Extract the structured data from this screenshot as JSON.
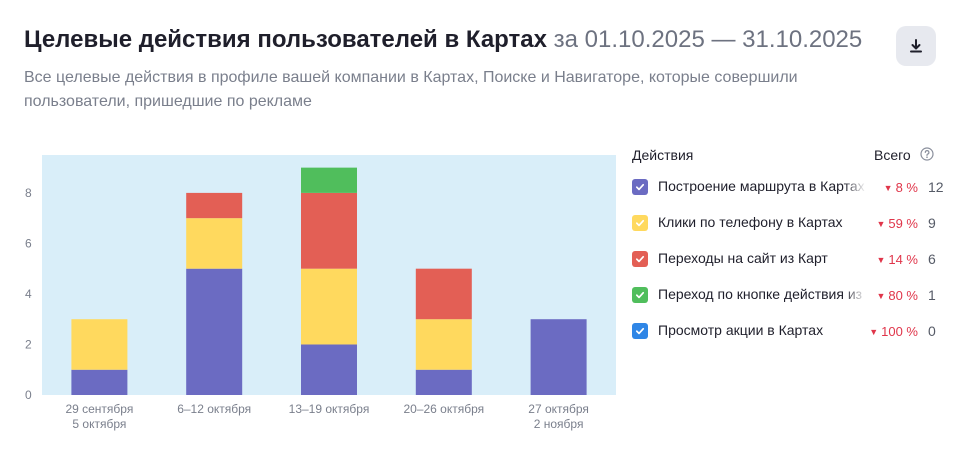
{
  "header": {
    "title": "Целевые действия пользователей в Картах",
    "period": "за 01.10.2025 — 31.10.2025",
    "subtitle": "Все целевые действия в профиле вашей компании в Картах, Поиске и Навигаторе, которые совершили пользователи, пришедшие по рекламе",
    "download_icon": "download-icon"
  },
  "legend": {
    "col_actions": "Действия",
    "col_total": "Всего",
    "help_icon": "question-circle-icon",
    "items": [
      {
        "name": "Построение маршрута в Картах",
        "change": "8 %",
        "total": "12",
        "color": "#6b6bc2"
      },
      {
        "name": "Клики по телефону в Картах",
        "change": "59 %",
        "total": "9",
        "color": "#ffd95e"
      },
      {
        "name": "Переходы на сайт из Карт",
        "change": "14 %",
        "total": "6",
        "color": "#e35f55"
      },
      {
        "name": "Переход по кнопке действия из Карт",
        "change": "80 %",
        "total": "1",
        "color": "#50be5c"
      },
      {
        "name": "Просмотр акции в Картах",
        "change": "100 %",
        "total": "0",
        "color": "#2f86e6"
      }
    ]
  },
  "chart_data": {
    "type": "bar",
    "stacked": true,
    "categories": [
      [
        "29 сентября",
        "5 октября"
      ],
      [
        "6–12 октября"
      ],
      [
        "13–19 октября"
      ],
      [
        "20–26 октября"
      ],
      [
        "27 октября",
        "2 ноября"
      ]
    ],
    "series": [
      {
        "name": "Построение маршрута в Картах",
        "color": "#6b6bc2",
        "values": [
          1,
          5,
          2,
          1,
          3
        ]
      },
      {
        "name": "Клики по телефону в Картах",
        "color": "#ffd95e",
        "values": [
          2,
          2,
          3,
          2,
          0
        ]
      },
      {
        "name": "Переходы на сайт из Карт",
        "color": "#e35f55",
        "values": [
          0,
          1,
          3,
          2,
          0
        ]
      },
      {
        "name": "Переход по кнопке действия из Карт",
        "color": "#50be5c",
        "values": [
          0,
          0,
          1,
          0,
          0
        ]
      },
      {
        "name": "Просмотр акции в Картах",
        "color": "#2f86e6",
        "values": [
          0,
          0,
          0,
          0,
          0
        ]
      }
    ],
    "yticks": [
      0,
      2,
      4,
      6,
      8
    ],
    "ylim": [
      0,
      9.5
    ],
    "grid": false,
    "plot_background": "#d9eef9"
  }
}
